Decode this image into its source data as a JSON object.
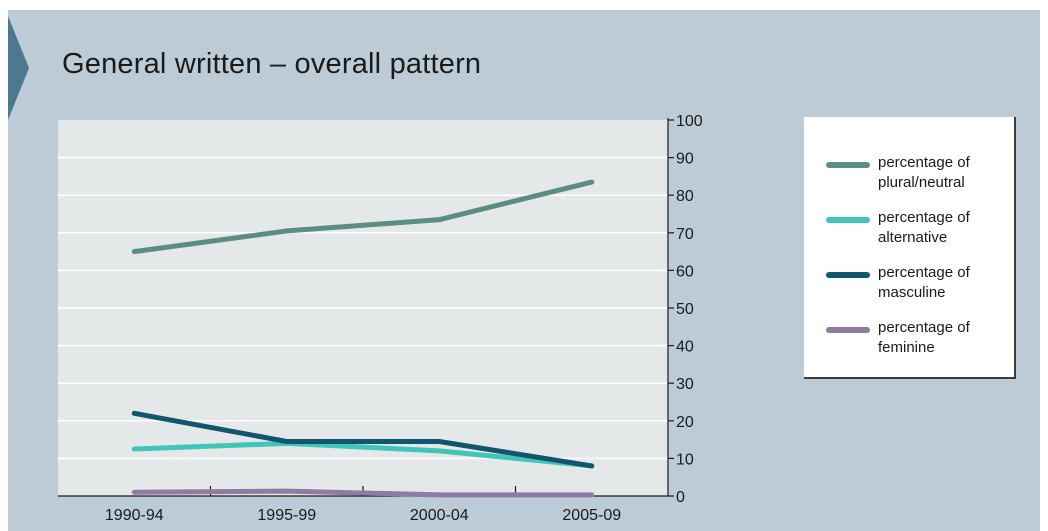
{
  "chart_data": {
    "type": "line",
    "title": "General written – overall pattern",
    "categories": [
      "1990-94",
      "1995-99",
      "2000-04",
      "2005-09"
    ],
    "ylim": [
      0,
      100
    ],
    "yticks": [
      0,
      10,
      20,
      30,
      40,
      50,
      60,
      70,
      80,
      90,
      100
    ],
    "y_axis_side": "right",
    "grid": "horizontal",
    "legend_position": "right",
    "series": [
      {
        "name": "percentage of plural/neutral",
        "color": "#5a8d84",
        "values": [
          65,
          70.5,
          73.5,
          83.5
        ]
      },
      {
        "name": "percentage of alternative",
        "color": "#3fc6b8",
        "values": [
          12.5,
          14,
          12,
          8
        ]
      },
      {
        "name": "percentage of masculine",
        "color": "#11556e",
        "values": [
          22,
          14.5,
          14.5,
          8
        ]
      },
      {
        "name": "percentage of feminine",
        "color": "#8f7ba3",
        "values": [
          1,
          1.3,
          0.3,
          0.3
        ]
      }
    ]
  },
  "colors": {
    "background": "#bccbd6",
    "plot_area": "#e4e8e9",
    "accent_tab": "#4e7892"
  },
  "legend_lines": [
    [
      "percentage of",
      "plural/neutral"
    ],
    [
      "percentage of",
      "alternative"
    ],
    [
      "percentage of",
      "masculine"
    ],
    [
      "percentage of",
      "feminine"
    ]
  ]
}
